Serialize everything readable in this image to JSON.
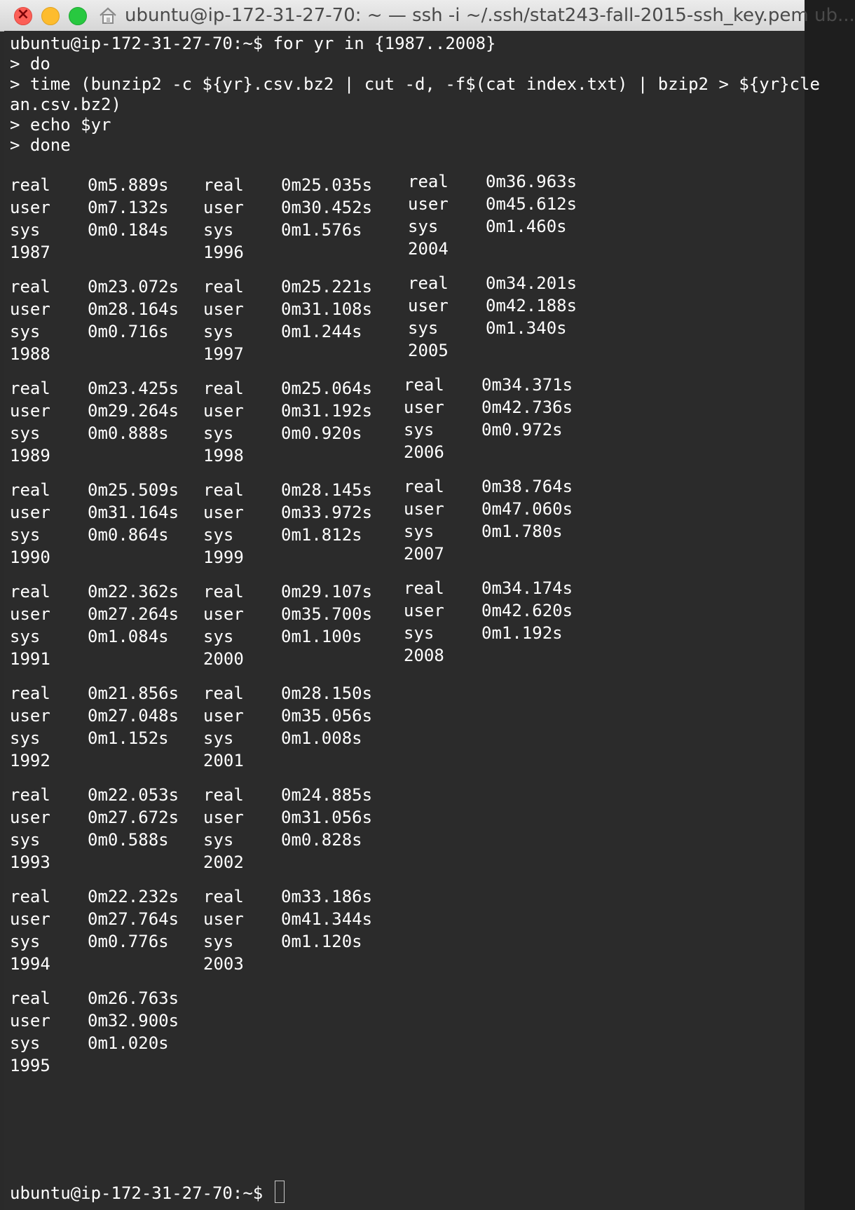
{
  "window": {
    "title": "ubuntu@ip-172-31-27-70: ~ — ssh -i ~/.ssh/stat243-fall-2015-ssh_key.pem ub..."
  },
  "command": {
    "line1": "ubuntu@ip-172-31-27-70:~$ for yr in {1987..2008}",
    "line2": "> do",
    "line3": "> time (bunzip2 -c ${yr}.csv.bz2 | cut -d, -f$(cat index.txt) | bzip2 > ${yr}cle",
    "line4": "an.csv.bz2)",
    "line5": "> echo $yr",
    "line6": "> done"
  },
  "labels": {
    "real": "real",
    "user": "user",
    "sys": "sys"
  },
  "results": [
    {
      "year": "1987",
      "real": "0m5.889s",
      "user": "0m7.132s",
      "sys": "0m0.184s"
    },
    {
      "year": "1988",
      "real": "0m23.072s",
      "user": "0m28.164s",
      "sys": "0m0.716s"
    },
    {
      "year": "1989",
      "real": "0m23.425s",
      "user": "0m29.264s",
      "sys": "0m0.888s"
    },
    {
      "year": "1990",
      "real": "0m25.509s",
      "user": "0m31.164s",
      "sys": "0m0.864s"
    },
    {
      "year": "1991",
      "real": "0m22.362s",
      "user": "0m27.264s",
      "sys": "0m1.084s"
    },
    {
      "year": "1992",
      "real": "0m21.856s",
      "user": "0m27.048s",
      "sys": "0m1.152s"
    },
    {
      "year": "1993",
      "real": "0m22.053s",
      "user": "0m27.672s",
      "sys": "0m0.588s"
    },
    {
      "year": "1994",
      "real": "0m22.232s",
      "user": "0m27.764s",
      "sys": "0m0.776s"
    },
    {
      "year": "1995",
      "real": "0m26.763s",
      "user": "0m32.900s",
      "sys": "0m1.020s"
    },
    {
      "year": "1996",
      "real": "0m25.035s",
      "user": "0m30.452s",
      "sys": "0m1.576s"
    },
    {
      "year": "1997",
      "real": "0m25.221s",
      "user": "0m31.108s",
      "sys": "0m1.244s"
    },
    {
      "year": "1998",
      "real": "0m25.064s",
      "user": "0m31.192s",
      "sys": "0m0.920s"
    },
    {
      "year": "1999",
      "real": "0m28.145s",
      "user": "0m33.972s",
      "sys": "0m1.812s"
    },
    {
      "year": "2000",
      "real": "0m29.107s",
      "user": "0m35.700s",
      "sys": "0m1.100s"
    },
    {
      "year": "2001",
      "real": "0m28.150s",
      "user": "0m35.056s",
      "sys": "0m1.008s"
    },
    {
      "year": "2002",
      "real": "0m24.885s",
      "user": "0m31.056s",
      "sys": "0m0.828s"
    },
    {
      "year": "2003",
      "real": "0m33.186s",
      "user": "0m41.344s",
      "sys": "0m1.120s"
    },
    {
      "year": "2004",
      "real": "0m36.963s",
      "user": "0m45.612s",
      "sys": "0m1.460s"
    },
    {
      "year": "2005",
      "real": "0m34.201s",
      "user": "0m42.188s",
      "sys": "0m1.340s"
    },
    {
      "year": "2006",
      "real": "0m34.371s",
      "user": "0m42.736s",
      "sys": "0m0.972s"
    },
    {
      "year": "2007",
      "real": "0m38.764s",
      "user": "0m47.060s",
      "sys": "0m1.780s"
    },
    {
      "year": "2008",
      "real": "0m34.174s",
      "user": "0m42.620s",
      "sys": "0m1.192s"
    }
  ],
  "prompt": {
    "text": "ubuntu@ip-172-31-27-70:~$ "
  }
}
